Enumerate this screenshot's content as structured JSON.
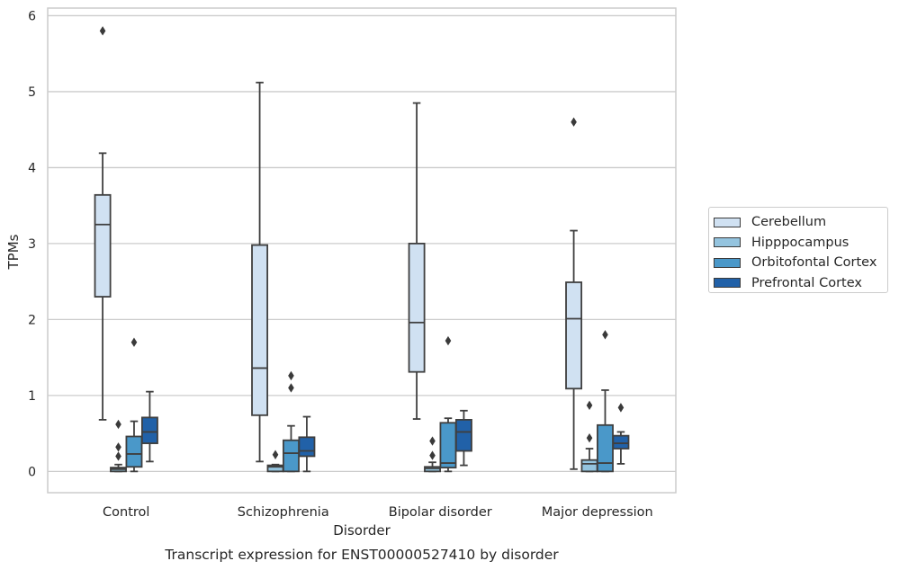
{
  "chart_data": {
    "type": "box",
    "title": "Transcript expression for ENST00000527410 by disorder",
    "xlabel": "Disorder",
    "ylabel": "TPMs",
    "ylim": [
      -0.28,
      6.1
    ],
    "yticks": [
      0,
      1,
      2,
      3,
      4,
      5,
      6
    ],
    "grid": "y",
    "legend_position": "right",
    "categories": [
      "Control",
      "Schizophrenia",
      "Bipolar disorder",
      "Major depression"
    ],
    "series": [
      {
        "name": "Cerebellum",
        "color": "#d0e1f2",
        "boxes": [
          {
            "whislo": 0.68,
            "q1": 2.3,
            "med": 3.25,
            "q3": 3.64,
            "whishi": 4.19,
            "fliers": [
              5.8
            ]
          },
          {
            "whislo": 0.13,
            "q1": 0.74,
            "med": 1.36,
            "q3": 2.98,
            "whishi": 5.12,
            "fliers": []
          },
          {
            "whislo": 0.69,
            "q1": 1.31,
            "med": 1.96,
            "q3": 3.0,
            "whishi": 4.85,
            "fliers": []
          },
          {
            "whislo": 0.03,
            "q1": 1.09,
            "med": 2.01,
            "q3": 2.49,
            "whishi": 3.17,
            "fliers": [
              4.6
            ]
          }
        ]
      },
      {
        "name": "Hipppocampus",
        "color": "#94c4df",
        "boxes": [
          {
            "whislo": 0.0,
            "q1": 0.0,
            "med": 0.03,
            "q3": 0.05,
            "whishi": 0.09,
            "fliers": [
              0.2,
              0.32,
              0.62
            ]
          },
          {
            "whislo": 0.0,
            "q1": 0.0,
            "med": 0.06,
            "q3": 0.08,
            "whishi": 0.09,
            "fliers": [
              0.22
            ]
          },
          {
            "whislo": 0.0,
            "q1": 0.0,
            "med": 0.04,
            "q3": 0.06,
            "whishi": 0.12,
            "fliers": [
              0.21,
              0.4
            ]
          },
          {
            "whislo": 0.0,
            "q1": 0.0,
            "med": 0.1,
            "q3": 0.15,
            "whishi": 0.3,
            "fliers": [
              0.44,
              0.87
            ]
          }
        ]
      },
      {
        "name": "Orbitofontal Cortex",
        "color": "#4a98c9",
        "boxes": [
          {
            "whislo": 0.0,
            "q1": 0.06,
            "med": 0.23,
            "q3": 0.46,
            "whishi": 0.66,
            "fliers": [
              1.7
            ]
          },
          {
            "whislo": 0.0,
            "q1": 0.0,
            "med": 0.24,
            "q3": 0.41,
            "whishi": 0.6,
            "fliers": [
              1.1,
              1.26
            ]
          },
          {
            "whislo": 0.0,
            "q1": 0.05,
            "med": 0.11,
            "q3": 0.64,
            "whishi": 0.7,
            "fliers": [
              1.72
            ]
          },
          {
            "whislo": 0.0,
            "q1": 0.0,
            "med": 0.11,
            "q3": 0.61,
            "whishi": 1.07,
            "fliers": [
              1.8
            ]
          }
        ]
      },
      {
        "name": "Prefrontal Cortex",
        "color": "#2161a8",
        "boxes": [
          {
            "whislo": 0.13,
            "q1": 0.37,
            "med": 0.52,
            "q3": 0.71,
            "whishi": 1.05,
            "fliers": []
          },
          {
            "whislo": 0.0,
            "q1": 0.2,
            "med": 0.27,
            "q3": 0.45,
            "whishi": 0.72,
            "fliers": []
          },
          {
            "whislo": 0.08,
            "q1": 0.27,
            "med": 0.52,
            "q3": 0.68,
            "whishi": 0.8,
            "fliers": []
          },
          {
            "whislo": 0.1,
            "q1": 0.3,
            "med": 0.37,
            "q3": 0.47,
            "whishi": 0.52,
            "fliers": [
              0.84
            ]
          }
        ]
      }
    ]
  }
}
